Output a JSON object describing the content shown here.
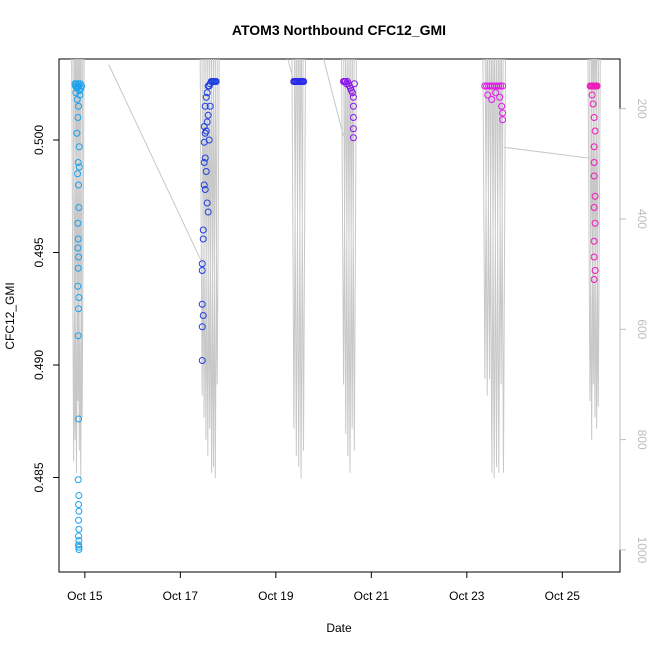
{
  "chart_data": {
    "type": "scatter",
    "title": "ATOM3 Northbound CFC12_GMI",
    "xlabel": "Date",
    "ylabel": "CFC12_GMI",
    "x_ticks": [
      "Oct 15",
      "Oct 17",
      "Oct 19",
      "Oct 21",
      "Oct 23",
      "Oct 25"
    ],
    "y_ticks": [
      "0.485",
      "0.490",
      "0.495",
      "0.500"
    ],
    "y2_ticks": [
      "200",
      "400",
      "600",
      "800",
      "1000"
    ],
    "xlim": [
      "2017-10-14 11:00",
      "2017-10-26 05:00"
    ],
    "ylim": [
      0.4808,
      0.5036
    ],
    "y2lim": [
      1040,
      110
    ],
    "y2_label": "",
    "grid": false,
    "legend": "none",
    "colors": {
      "flight1": "#1aa3ee",
      "flight2": "#2040e0",
      "flight2b": "#0a5cf0",
      "flight3": "#2a2ae8",
      "flight4": "#8a1ae8",
      "flight5": "#e01ae8",
      "flight6": "#f01aba",
      "pressure_line": "#c8c8c8",
      "right_axis": "#bdbdbd"
    },
    "series": [
      {
        "flight": "2017-10-14",
        "color": "#1aa3ee",
        "x": [
          "2017-10-14 19:00",
          "2017-10-14 19:20",
          "2017-10-14 19:40",
          "2017-10-14 20:00",
          "2017-10-14 20:20",
          "2017-10-14 20:40",
          "2017-10-14 21:00",
          "2017-10-14 21:20",
          "2017-10-14 21:40",
          "2017-10-14 22:00",
          "2017-10-14 22:20",
          "2017-10-14 19:30",
          "2017-10-14 20:10",
          "2017-10-14 20:50",
          "2017-10-14 21:30",
          "2017-10-14 20:30",
          "2017-10-14 20:00",
          "2017-10-14 21:10",
          "2017-10-14 20:40",
          "2017-10-14 20:20",
          "2017-10-14 20:50",
          "2017-10-14 21:00",
          "2017-10-14 20:30",
          "2017-10-14 20:40",
          "2017-10-14 20:30",
          "2017-10-14 20:50",
          "2017-10-14 20:40",
          "2017-10-14 20:30",
          "2017-10-14 21:00",
          "2017-10-14 20:50",
          "2017-10-14 20:40",
          "2017-10-14 21:10",
          "2017-10-14 20:50",
          "2017-10-14 20:40",
          "2017-10-14 21:00",
          "2017-10-14 20:50",
          "2017-10-14 21:00",
          "2017-10-14 20:50",
          "2017-10-14 21:00",
          "2017-10-14 20:50",
          "2017-10-14 21:00",
          "2017-10-14 20:50",
          "2017-10-14 21:00",
          "2017-10-14 20:50",
          "2017-10-14 21:00"
        ],
        "y": [
          0.5025,
          0.5024,
          0.5025,
          0.5023,
          0.5024,
          0.5025,
          0.5024,
          0.5022,
          0.5025,
          0.5023,
          0.5024,
          0.5021,
          0.5018,
          0.5015,
          0.502,
          0.501,
          0.5003,
          0.4997,
          0.499,
          0.4985,
          0.498,
          0.497,
          0.4963,
          0.4956,
          0.4952,
          0.4948,
          0.4943,
          0.4935,
          0.493,
          0.4925,
          0.4913,
          0.4988,
          0.4876,
          0.4849,
          0.4842,
          0.4838,
          0.4835,
          0.4831,
          0.4827,
          0.4824,
          0.4822,
          0.482,
          0.4818,
          0.482,
          0.4819
        ]
      },
      {
        "flight": "2017-10-17",
        "color": "#2040e0",
        "x": [
          "2017-10-17 11:00",
          "2017-10-17 11:00",
          "2017-10-17 11:00",
          "2017-10-17 11:00",
          "2017-10-17 11:00",
          "2017-10-17 11:30",
          "2017-10-17 11:30",
          "2017-10-17 11:30",
          "2017-10-17 12:00",
          "2017-10-17 12:00",
          "2017-10-17 12:00",
          "2017-10-17 12:00",
          "2017-10-17 12:30",
          "2017-10-17 12:30",
          "2017-10-17 12:30",
          "2017-10-17 12:30",
          "2017-10-17 13:00",
          "2017-10-17 13:00",
          "2017-10-17 13:00",
          "2017-10-17 13:30",
          "2017-10-17 13:30",
          "2017-10-17 13:30",
          "2017-10-17 14:00",
          "2017-10-17 14:00",
          "2017-10-17 14:00",
          "2017-10-17 14:30",
          "2017-10-17 14:30",
          "2017-10-17 15:00",
          "2017-10-17 15:00",
          "2017-10-17 15:30",
          "2017-10-17 16:00",
          "2017-10-17 16:30",
          "2017-10-17 17:00",
          "2017-10-17 17:30",
          "2017-10-17 18:00"
        ],
        "y": [
          0.4945,
          0.4942,
          0.4927,
          0.4917,
          0.4902,
          0.496,
          0.4956,
          0.4922,
          0.5006,
          0.4999,
          0.499,
          0.498,
          0.5015,
          0.5003,
          0.4992,
          0.4978,
          0.5019,
          0.5004,
          0.4986,
          0.5021,
          0.5008,
          0.4972,
          0.5024,
          0.5011,
          0.4968,
          0.5024,
          0.5,
          0.5025,
          0.5015,
          0.5026,
          0.5026,
          0.5026,
          0.5026,
          0.5026,
          0.5026
        ]
      },
      {
        "flight": "2017-10-19",
        "color": "#2a2ae8",
        "x": [
          "2017-10-19 09:00",
          "2017-10-19 09:30",
          "2017-10-19 10:00",
          "2017-10-19 10:30",
          "2017-10-19 11:00",
          "2017-10-19 11:30",
          "2017-10-19 12:00",
          "2017-10-19 12:30",
          "2017-10-19 13:00",
          "2017-10-19 13:30",
          "2017-10-19 14:00"
        ],
        "y": [
          0.5026,
          0.5026,
          0.5026,
          0.5026,
          0.5026,
          0.5026,
          0.5026,
          0.5026,
          0.5026,
          0.5026,
          0.5026
        ]
      },
      {
        "flight": "2017-10-20",
        "color": "#8a1ae8",
        "x": [
          "2017-10-20 10:00",
          "2017-10-20 10:30",
          "2017-10-20 11:00",
          "2017-10-20 11:30",
          "2017-10-20 12:00",
          "2017-10-20 12:30",
          "2017-10-20 13:00",
          "2017-10-20 13:30",
          "2017-10-20 14:00",
          "2017-10-20 14:30",
          "2017-10-20 15:00",
          "2017-10-20 15:00",
          "2017-10-20 15:00",
          "2017-10-20 15:00",
          "2017-10-20 15:00",
          "2017-10-20 15:30"
        ],
        "y": [
          0.5026,
          0.5026,
          0.5026,
          0.5025,
          0.5026,
          0.5025,
          0.5024,
          0.5023,
          0.5022,
          0.5021,
          0.5019,
          0.5015,
          0.501,
          0.5005,
          0.5001,
          0.5025
        ]
      },
      {
        "flight": "2017-10-23",
        "color": "#e01ae8",
        "x": [
          "2017-10-23 09:00",
          "2017-10-23 10:00",
          "2017-10-23 11:00",
          "2017-10-23 12:00",
          "2017-10-23 13:00",
          "2017-10-23 14:00",
          "2017-10-23 15:00",
          "2017-10-23 16:00",
          "2017-10-23 17:00",
          "2017-10-23 18:00",
          "2017-10-23 10:30",
          "2017-10-23 12:30",
          "2017-10-23 14:30",
          "2017-10-23 16:30",
          "2017-10-23 17:30",
          "2017-10-23 18:00",
          "2017-10-23 18:00"
        ],
        "y": [
          0.5024,
          0.5024,
          0.5024,
          0.5024,
          0.5024,
          0.5024,
          0.5024,
          0.5024,
          0.5024,
          0.5024,
          0.502,
          0.5018,
          0.5021,
          0.5019,
          0.5015,
          0.5012,
          0.5009
        ]
      },
      {
        "flight": "2017-10-25",
        "color": "#f01aba",
        "x": [
          "2017-10-25 14:00",
          "2017-10-25 14:30",
          "2017-10-25 15:00",
          "2017-10-25 15:30",
          "2017-10-25 16:00",
          "2017-10-25 16:30",
          "2017-10-25 17:00",
          "2017-10-25 17:30",
          "2017-10-25 15:00",
          "2017-10-25 15:30",
          "2017-10-25 16:00",
          "2017-10-25 16:30",
          "2017-10-25 16:00",
          "2017-10-25 16:00",
          "2017-10-25 16:00",
          "2017-10-25 16:30",
          "2017-10-25 16:00",
          "2017-10-25 16:30",
          "2017-10-25 16:00",
          "2017-10-25 16:00",
          "2017-10-25 16:30",
          "2017-10-25 16:00"
        ],
        "y": [
          0.5024,
          0.5024,
          0.5024,
          0.5024,
          0.5024,
          0.5024,
          0.5024,
          0.5024,
          0.502,
          0.5016,
          0.501,
          0.5004,
          0.4997,
          0.499,
          0.4984,
          0.4975,
          0.497,
          0.4963,
          0.4955,
          0.4948,
          0.4942,
          0.4938
        ]
      }
    ]
  }
}
